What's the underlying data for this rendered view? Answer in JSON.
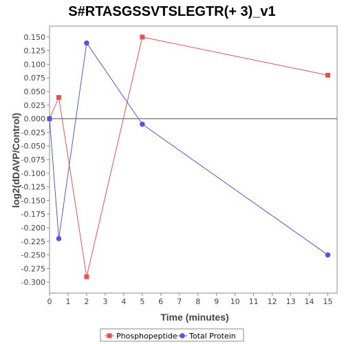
{
  "chart_data": {
    "type": "line",
    "title": "S#RTASGSSVTSLEGTR(+ 3)_v1",
    "xlabel": "Time (minutes)",
    "ylabel": "log2(dDAVP/Control)",
    "xlim": [
      0,
      15.5
    ],
    "ylim": [
      -0.32,
      0.17
    ],
    "x_ticks": [
      0,
      1,
      2,
      3,
      4,
      5,
      6,
      7,
      8,
      9,
      10,
      11,
      12,
      13,
      14,
      15
    ],
    "y_ticks": [
      0.15,
      0.125,
      0.1,
      0.075,
      0.05,
      0.025,
      0.0,
      -0.025,
      -0.05,
      -0.075,
      -0.1,
      -0.125,
      -0.15,
      -0.175,
      -0.2,
      -0.225,
      -0.25,
      -0.275,
      -0.3
    ],
    "y_tick_labels": [
      "0.150",
      "0.125",
      "0.100",
      "0.075",
      "0.050",
      "0.025",
      "0.000",
      "-0.025",
      "-0.050",
      "-0.075",
      "-0.100",
      "-0.125",
      "-0.150",
      "-0.175",
      "-0.200",
      "-0.225",
      "-0.250",
      "-0.275",
      "-0.300"
    ],
    "grid": false,
    "zero_line": true,
    "legend_position": "bottom",
    "series": [
      {
        "name": "Phosphopeptide",
        "color": "#e85050",
        "marker": "square",
        "points": [
          [
            0,
            0.0
          ],
          [
            0.5,
            0.039
          ],
          [
            2,
            -0.29
          ],
          [
            5,
            0.15
          ],
          [
            15,
            0.08
          ]
        ]
      },
      {
        "name": "Total Protein",
        "color": "#5555e0",
        "marker": "circle",
        "points": [
          [
            0,
            0.0
          ],
          [
            0.5,
            -0.22
          ],
          [
            2,
            0.139
          ],
          [
            5,
            -0.01
          ],
          [
            15,
            -0.25
          ]
        ]
      }
    ]
  }
}
